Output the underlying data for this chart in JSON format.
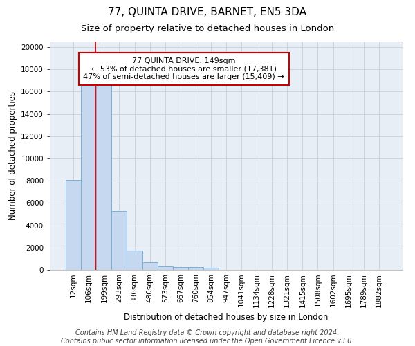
{
  "title": "77, QUINTA DRIVE, BARNET, EN5 3DA",
  "subtitle": "Size of property relative to detached houses in London",
  "xlabel": "Distribution of detached houses by size in London",
  "ylabel": "Number of detached properties",
  "bar_labels": [
    "12sqm",
    "106sqm",
    "199sqm",
    "293sqm",
    "386sqm",
    "480sqm",
    "573sqm",
    "667sqm",
    "760sqm",
    "854sqm",
    "947sqm",
    "1041sqm",
    "1134sqm",
    "1228sqm",
    "1321sqm",
    "1415sqm",
    "1508sqm",
    "1602sqm",
    "1695sqm",
    "1789sqm",
    "1882sqm"
  ],
  "bar_heights": [
    8100,
    16650,
    16650,
    5300,
    1750,
    700,
    320,
    260,
    230,
    200,
    0,
    0,
    0,
    0,
    0,
    0,
    0,
    0,
    0,
    0,
    0
  ],
  "bar_color": "#c5d8ef",
  "bar_edge_color": "#7aafd4",
  "background_color": "#e8eef5",
  "red_line_x": 1.45,
  "red_line_color": "#cc0000",
  "annotation_text": "77 QUINTA DRIVE: 149sqm\n← 53% of detached houses are smaller (17,381)\n47% of semi-detached houses are larger (15,409) →",
  "annotation_box_color": "white",
  "annotation_box_edge_color": "#cc0000",
  "ylim": [
    0,
    20500
  ],
  "yticks": [
    0,
    2000,
    4000,
    6000,
    8000,
    10000,
    12000,
    14000,
    16000,
    18000,
    20000
  ],
  "footer_text": "Contains HM Land Registry data © Crown copyright and database right 2024.\nContains public sector information licensed under the Open Government Licence v3.0.",
  "title_fontsize": 11,
  "subtitle_fontsize": 9.5,
  "annotation_fontsize": 8,
  "ylabel_fontsize": 8.5,
  "xlabel_fontsize": 8.5,
  "tick_fontsize": 7.5,
  "footer_fontsize": 7
}
